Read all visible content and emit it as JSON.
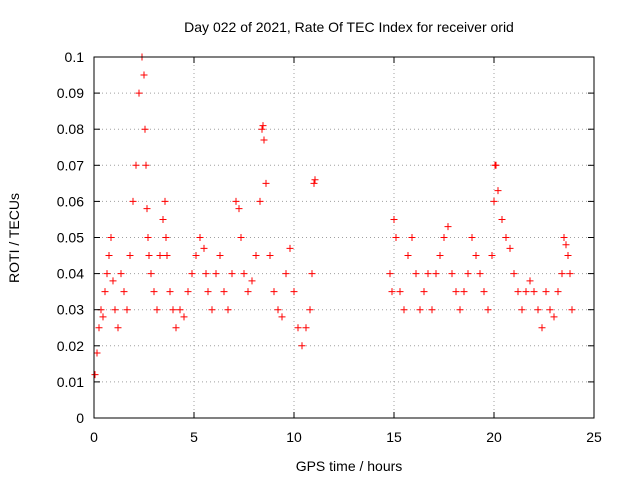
{
  "chart_data": {
    "type": "scatter",
    "title": "Day 022 of 2021, Rate Of TEC Index for receiver orid",
    "xlabel": "GPS time / hours",
    "ylabel": "ROTI / TECUs",
    "xlim": [
      0,
      25
    ],
    "ylim": [
      0,
      0.1
    ],
    "xticks": [
      "0",
      "5",
      "10",
      "15",
      "20",
      "25"
    ],
    "yticks": [
      "0",
      "0.01",
      "0.02",
      "0.03",
      "0.04",
      "0.05",
      "0.06",
      "0.07",
      "0.08",
      "0.09",
      "0.1"
    ],
    "grid": true,
    "marker": "+",
    "color": "#ff0000",
    "series": [
      {
        "x": [
          0.05,
          0.15,
          0.25,
          0.35,
          0.45,
          0.55,
          0.65,
          0.75,
          0.85,
          0.95,
          1.05,
          1.2,
          1.35,
          1.5,
          1.65,
          1.8,
          1.95,
          2.1,
          2.25,
          2.4,
          2.5,
          2.55,
          2.6,
          2.65,
          2.7,
          2.75,
          2.85,
          3.0,
          3.15,
          3.3,
          3.45,
          3.55,
          3.6,
          3.65,
          3.8,
          3.95,
          4.1,
          4.3,
          4.5,
          4.7,
          4.9,
          5.1,
          5.3,
          5.5,
          5.6,
          5.7,
          5.9,
          6.1,
          6.3,
          6.5,
          6.7,
          6.9,
          7.1,
          7.25,
          7.35,
          7.5,
          7.7,
          7.9,
          8.1,
          8.3,
          8.4,
          8.45,
          8.5,
          8.6,
          8.8,
          9.0,
          9.2,
          9.4,
          9.6,
          9.8,
          10.0,
          10.2,
          10.4,
          10.6,
          10.8,
          10.9,
          11.0,
          11.05,
          14.8,
          14.9,
          15.0,
          15.1,
          15.3,
          15.5,
          15.7,
          15.9,
          16.1,
          16.3,
          16.5,
          16.7,
          16.9,
          17.1,
          17.3,
          17.5,
          17.7,
          17.9,
          18.1,
          18.3,
          18.5,
          18.7,
          18.9,
          19.1,
          19.3,
          19.5,
          19.7,
          19.9,
          20.0,
          20.05,
          20.1,
          20.2,
          20.4,
          20.6,
          20.8,
          21.0,
          21.2,
          21.4,
          21.6,
          21.8,
          22.0,
          22.2,
          22.4,
          22.6,
          22.8,
          23.0,
          23.2,
          23.4,
          23.5,
          23.6,
          23.7,
          23.8,
          23.9
        ],
        "y": [
          0.012,
          0.018,
          0.025,
          0.03,
          0.028,
          0.035,
          0.04,
          0.045,
          0.05,
          0.038,
          0.03,
          0.025,
          0.04,
          0.035,
          0.03,
          0.045,
          0.06,
          0.07,
          0.09,
          0.1,
          0.095,
          0.08,
          0.07,
          0.058,
          0.05,
          0.045,
          0.04,
          0.035,
          0.03,
          0.045,
          0.055,
          0.06,
          0.05,
          0.045,
          0.035,
          0.03,
          0.025,
          0.03,
          0.028,
          0.035,
          0.04,
          0.045,
          0.05,
          0.047,
          0.04,
          0.035,
          0.03,
          0.04,
          0.045,
          0.035,
          0.03,
          0.04,
          0.06,
          0.058,
          0.05,
          0.04,
          0.035,
          0.038,
          0.045,
          0.06,
          0.08,
          0.081,
          0.077,
          0.065,
          0.045,
          0.035,
          0.03,
          0.028,
          0.04,
          0.047,
          0.035,
          0.025,
          0.02,
          0.025,
          0.03,
          0.04,
          0.065,
          0.066,
          0.04,
          0.035,
          0.055,
          0.05,
          0.035,
          0.03,
          0.045,
          0.05,
          0.04,
          0.03,
          0.035,
          0.04,
          0.03,
          0.04,
          0.045,
          0.05,
          0.053,
          0.04,
          0.035,
          0.03,
          0.035,
          0.04,
          0.05,
          0.045,
          0.04,
          0.035,
          0.03,
          0.045,
          0.06,
          0.07,
          0.07,
          0.063,
          0.055,
          0.05,
          0.047,
          0.04,
          0.035,
          0.03,
          0.035,
          0.038,
          0.035,
          0.03,
          0.025,
          0.035,
          0.03,
          0.028,
          0.035,
          0.04,
          0.05,
          0.048,
          0.045,
          0.04,
          0.03
        ]
      }
    ]
  }
}
